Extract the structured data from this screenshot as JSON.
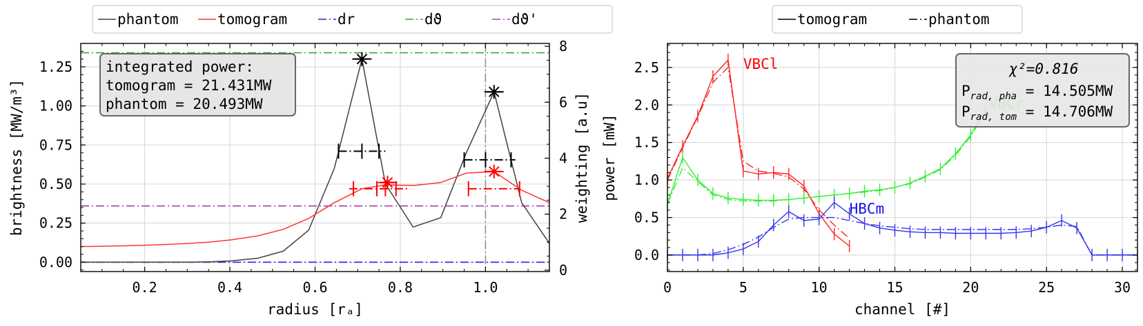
{
  "chart_data": [
    {
      "type": "line",
      "xlabel": "radius [rₐ]",
      "ylabel": "brightness [MW/m³]",
      "ylabel_right": "weighting [a.u]",
      "xlim": [
        0.05,
        1.15
      ],
      "ylim": [
        -0.06,
        1.4
      ],
      "ylim_right": [
        -0.05,
        8.1
      ],
      "xticks": [
        0.2,
        0.4,
        0.6,
        0.8,
        1.0
      ],
      "xtick_labels": [
        "0.2",
        "0.4",
        "0.6",
        "0.8",
        "1.0"
      ],
      "yticks": [
        0.0,
        0.25,
        0.5,
        0.75,
        1.0,
        1.25
      ],
      "ytick_labels": [
        "0.00",
        "0.25",
        "0.50",
        "0.75",
        "1.00",
        "1.25"
      ],
      "yticks_right": [
        0,
        2,
        4,
        6,
        8
      ],
      "ytick_labels_right": [
        "0",
        "2",
        "4",
        "6",
        "8"
      ],
      "grid": true,
      "legend": {
        "placement": "top-outside",
        "entries": [
          {
            "label": "phantom",
            "color": "#404040",
            "style": "solid"
          },
          {
            "label": "tomogram",
            "color": "#ff3333",
            "style": "solid"
          },
          {
            "label": "dr",
            "color": "#2222ee",
            "style": "dashdot"
          },
          {
            "label": "dϑ",
            "color": "#33aa33",
            "style": "dashdot"
          },
          {
            "label": "dϑ'",
            "color": "#aa44aa",
            "style": "dashdot"
          }
        ]
      },
      "annotation": {
        "lines": [
          "integrated power:",
          "tomogram = 21.431MW",
          "phantom = 20.493MW"
        ],
        "placement": "top-left"
      },
      "series": [
        {
          "name": "phantom",
          "color": "#404040",
          "x": [
            0.05,
            0.1,
            0.15,
            0.2,
            0.25,
            0.3,
            0.35,
            0.4,
            0.465,
            0.525,
            0.585,
            0.645,
            0.71,
            0.765,
            0.83,
            0.895,
            0.955,
            1.02,
            1.085,
            1.15
          ],
          "y": [
            0.0,
            0.0,
            0.0,
            0.0,
            0.0,
            0.0,
            0.002,
            0.008,
            0.025,
            0.07,
            0.205,
            0.6,
            1.3,
            0.5,
            0.225,
            0.285,
            0.7,
            1.09,
            0.38,
            0.12
          ]
        },
        {
          "name": "tomogram",
          "color": "#ff3333",
          "x": [
            0.05,
            0.1,
            0.15,
            0.2,
            0.25,
            0.3,
            0.35,
            0.4,
            0.465,
            0.525,
            0.585,
            0.645,
            0.71,
            0.765,
            0.83,
            0.895,
            0.955,
            1.02,
            1.085,
            1.15
          ],
          "y": [
            0.1,
            0.102,
            0.105,
            0.108,
            0.113,
            0.12,
            0.128,
            0.142,
            0.168,
            0.21,
            0.28,
            0.38,
            0.47,
            0.495,
            0.49,
            0.51,
            0.57,
            0.58,
            0.46,
            0.38
          ]
        },
        {
          "name": "dr",
          "color": "#2222ee",
          "style": "dashdot",
          "y_const": 0.0
        },
        {
          "name": "dϑ",
          "color": "#33aa33",
          "style": "dashdot",
          "y_const": 1.34
        },
        {
          "name": "dϑ'",
          "color": "#aa44aa",
          "style": "dashdot",
          "y_const": 0.36
        }
      ],
      "vertical_marker": {
        "x": 1.0,
        "color": "#888888",
        "style": "dashdot"
      },
      "peak_markers": [
        {
          "color": "#000000",
          "x": 0.71,
          "y": 1.3,
          "xerr": [
            0.655,
            0.765
          ],
          "ycross": 0.71,
          "ycross_ticks": [
            0.655,
            0.71,
            0.75
          ]
        },
        {
          "color": "#000000",
          "x": 1.02,
          "y": 1.09,
          "xerr": [
            0.95,
            1.07
          ],
          "ycross": 0.655,
          "ycross_ticks": [
            0.95,
            1.0,
            1.06
          ]
        },
        {
          "color": "#ff0000",
          "x": 0.77,
          "y": 0.51,
          "xerr": [
            0.68,
            0.82
          ],
          "ycross": 0.47,
          "ycross_ticks": [
            0.69,
            0.745,
            0.765,
            0.79
          ]
        },
        {
          "color": "#ff0000",
          "x": 1.02,
          "y": 0.58,
          "xerr": [
            0.96,
            1.08
          ],
          "ycross": 0.47,
          "ycross_ticks": [
            0.96,
            1.08
          ]
        }
      ]
    },
    {
      "type": "line",
      "xlabel": "channel [#]",
      "ylabel": "power [mW]",
      "xlim": [
        0,
        31
      ],
      "ylim": [
        -0.22,
        2.82
      ],
      "xticks": [
        0,
        5,
        10,
        15,
        20,
        25,
        30
      ],
      "xtick_labels": [
        "0",
        "5",
        "10",
        "15",
        "20",
        "25",
        "30"
      ],
      "yticks": [
        0.0,
        0.5,
        1.0,
        1.5,
        2.0,
        2.5
      ],
      "ytick_labels": [
        "0.0",
        "0.5",
        "1.0",
        "1.5",
        "2.0",
        "2.5"
      ],
      "grid": true,
      "legend": {
        "placement": "top-outside",
        "entries": [
          {
            "label": "tomogram",
            "color": "#000000",
            "style": "solid"
          },
          {
            "label": "phantom",
            "color": "#000000",
            "style": "dashdot"
          }
        ]
      },
      "annotation": {
        "chi": "χ²=0.816",
        "p_pha_label": "P",
        "p_pha_sub": "rad, pha",
        "p_pha_value": " = 14.505MW",
        "p_tom_label": "P",
        "p_tom_sub": "rad, tom",
        "p_tom_value": " = 14.706MW",
        "placement": "top-right"
      },
      "camera_labels": [
        {
          "text": "VBCl",
          "color": "#ff0000",
          "x": 5.0,
          "y": 2.48
        },
        {
          "text": "VBCr",
          "color": "#33ee33",
          "x": 21.2,
          "y": 1.95
        },
        {
          "text": "HBCm",
          "color": "#1111ee",
          "x": 12.0,
          "y": 0.55
        }
      ],
      "series": [
        {
          "name": "VBCl tomogram",
          "color": "#ff2222",
          "style": "solid",
          "x": [
            0,
            1,
            2,
            3,
            4,
            5,
            6,
            7,
            8,
            9,
            10,
            11,
            12
          ],
          "y": [
            1.02,
            1.45,
            1.85,
            2.38,
            2.6,
            1.12,
            1.08,
            1.1,
            1.08,
            0.92,
            0.55,
            0.28,
            0.12
          ]
        },
        {
          "name": "VBCl phantom",
          "color": "#ff2222",
          "style": "dashdot",
          "x": [
            0,
            1,
            2,
            3,
            4,
            5,
            6,
            7,
            8,
            9,
            10,
            11,
            12
          ],
          "y": [
            1.0,
            1.43,
            1.84,
            2.3,
            2.5,
            1.25,
            1.12,
            1.09,
            1.04,
            0.88,
            0.6,
            0.4,
            0.22
          ]
        },
        {
          "name": "VBCr tomogram",
          "color": "#33ee33",
          "style": "solid",
          "x": [
            0,
            1,
            2,
            3,
            4,
            5,
            6,
            7,
            8,
            9,
            10,
            11,
            12,
            13,
            14,
            15,
            16,
            17,
            18,
            19,
            20,
            21
          ],
          "y": [
            0.68,
            1.3,
            1.0,
            0.82,
            0.76,
            0.74,
            0.73,
            0.73,
            0.74,
            0.76,
            0.78,
            0.8,
            0.82,
            0.85,
            0.87,
            0.9,
            0.96,
            1.05,
            1.15,
            1.35,
            1.6,
            1.95
          ]
        },
        {
          "name": "VBCr phantom",
          "color": "#33ee33",
          "style": "dashdot",
          "x": [
            0,
            1,
            2,
            3,
            4,
            5,
            6,
            7,
            8,
            9,
            10,
            11,
            12,
            13,
            14,
            15,
            16,
            17,
            18,
            19,
            20,
            21
          ],
          "y": [
            0.68,
            1.16,
            0.98,
            0.8,
            0.74,
            0.72,
            0.72,
            0.72,
            0.74,
            0.76,
            0.78,
            0.8,
            0.82,
            0.84,
            0.86,
            0.9,
            0.95,
            1.04,
            1.14,
            1.33,
            1.58,
            1.92
          ]
        },
        {
          "name": "HBCm tomogram",
          "color": "#3333ee",
          "style": "solid",
          "x": [
            0,
            1,
            2,
            3,
            4,
            5,
            6,
            7,
            8,
            9,
            10,
            11,
            12,
            13,
            14,
            15,
            16,
            17,
            18,
            19,
            20,
            21,
            22,
            23,
            24,
            25,
            26,
            27,
            28,
            29,
            30,
            31
          ],
          "y": [
            0.0,
            0.0,
            0.0,
            0.0,
            0.03,
            0.08,
            0.18,
            0.4,
            0.58,
            0.46,
            0.48,
            0.7,
            0.55,
            0.42,
            0.36,
            0.33,
            0.31,
            0.3,
            0.3,
            0.29,
            0.29,
            0.29,
            0.29,
            0.3,
            0.32,
            0.37,
            0.46,
            0.36,
            0.0,
            0.0,
            0.0,
            0.0
          ]
        },
        {
          "name": "HBCm phantom",
          "color": "#3333ee",
          "style": "dashdot",
          "x": [
            0,
            1,
            2,
            3,
            4,
            5,
            6,
            7,
            8,
            9,
            10,
            11,
            12,
            13,
            14,
            15,
            16,
            17,
            18,
            19,
            20,
            21,
            22,
            23,
            24,
            25,
            26,
            27,
            28,
            29,
            30,
            31
          ],
          "y": [
            0.0,
            0.0,
            0.0,
            0.02,
            0.07,
            0.14,
            0.24,
            0.37,
            0.48,
            0.5,
            0.5,
            0.5,
            0.46,
            0.42,
            0.39,
            0.37,
            0.35,
            0.34,
            0.34,
            0.34,
            0.34,
            0.34,
            0.34,
            0.34,
            0.35,
            0.37,
            0.4,
            0.38,
            0.0,
            0.0,
            0.0,
            0.0
          ]
        }
      ]
    }
  ]
}
